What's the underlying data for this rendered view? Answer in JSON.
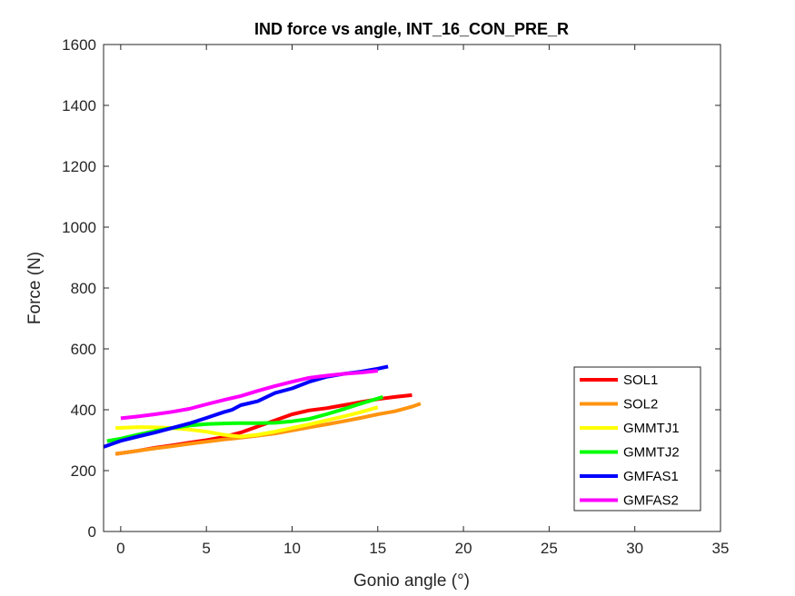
{
  "chart_data": {
    "type": "line",
    "title": "IND force vs angle, INT_16_CON_PRE_R",
    "xlabel": "Gonio angle (°)",
    "ylabel": "Force (N)",
    "xlim": [
      -1,
      35
    ],
    "ylim": [
      0,
      1600
    ],
    "xticks": [
      0,
      5,
      10,
      15,
      20,
      25,
      30,
      35
    ],
    "yticks": [
      0,
      200,
      400,
      600,
      800,
      1000,
      1200,
      1400,
      1600
    ],
    "grid": false,
    "legend_position": "bottom-right",
    "series": [
      {
        "name": "SOL1",
        "color": "#ff0000",
        "x": [
          -0.3,
          1,
          2,
          3,
          4,
          5,
          6,
          7,
          8,
          9,
          10,
          11,
          12,
          13,
          14,
          15,
          16,
          17
        ],
        "y": [
          255,
          265,
          275,
          283,
          292,
          300,
          310,
          325,
          345,
          365,
          385,
          398,
          405,
          415,
          425,
          435,
          442,
          448
        ]
      },
      {
        "name": "SOL2",
        "color": "#ff9410",
        "x": [
          -0.3,
          1,
          2,
          3,
          4,
          5,
          6,
          7,
          8,
          9,
          10,
          11,
          12,
          13,
          14,
          15,
          16,
          17,
          17.5
        ],
        "y": [
          255,
          265,
          273,
          280,
          288,
          295,
          302,
          308,
          315,
          322,
          332,
          342,
          352,
          362,
          373,
          385,
          395,
          410,
          420
        ]
      },
      {
        "name": "GMMTJ1",
        "color": "#ffff00",
        "x": [
          -0.3,
          1,
          2,
          3,
          4,
          5,
          6,
          7,
          8,
          9,
          10,
          11,
          12,
          13,
          14,
          15
        ],
        "y": [
          340,
          343,
          342,
          340,
          335,
          328,
          318,
          312,
          318,
          328,
          340,
          352,
          365,
          378,
          392,
          408
        ]
      },
      {
        "name": "GMMTJ2",
        "color": "#00ff00",
        "x": [
          -0.8,
          0,
          1,
          2,
          3,
          4,
          5,
          6,
          7,
          8,
          9,
          10,
          11,
          12,
          13,
          14,
          15.3
        ],
        "y": [
          297,
          305,
          318,
          330,
          340,
          348,
          353,
          355,
          356,
          356,
          357,
          362,
          370,
          385,
          402,
          420,
          442
        ]
      },
      {
        "name": "GMFAS1",
        "color": "#0000ff",
        "x": [
          -1,
          0,
          1,
          2,
          3,
          4,
          5,
          6,
          6.5,
          7,
          8,
          9,
          10,
          11,
          12,
          13,
          14,
          15,
          15.6
        ],
        "y": [
          278,
          298,
          312,
          325,
          340,
          355,
          373,
          392,
          400,
          415,
          428,
          455,
          470,
          492,
          508,
          518,
          525,
          535,
          542
        ]
      },
      {
        "name": "GMFAS2",
        "color": "#ff00ff",
        "x": [
          0,
          1,
          2,
          3,
          4,
          5,
          6,
          7,
          8,
          9,
          10,
          11,
          12,
          13,
          14,
          15
        ],
        "y": [
          372,
          378,
          385,
          393,
          403,
          418,
          432,
          445,
          462,
          478,
          492,
          505,
          512,
          518,
          522,
          528
        ]
      }
    ]
  }
}
